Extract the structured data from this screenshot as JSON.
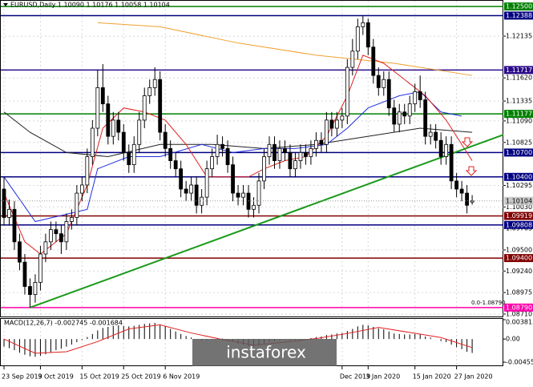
{
  "chart_data": {
    "type": "candlestick",
    "title": "EURUSD,Daily  1.10090 1.10176 1.10058 1.10104",
    "categories": [
      "23 Sep 2019",
      null,
      null,
      null,
      null,
      null,
      null,
      "3 Oct 2019",
      null,
      null,
      null,
      null,
      null,
      null,
      null,
      "15 Oct 2019",
      null,
      null,
      null,
      null,
      null,
      null,
      null,
      "25 Oct 2019",
      null,
      null,
      null,
      null,
      null,
      null,
      null,
      "6 Nov 2019",
      null,
      null,
      null,
      null,
      null,
      null,
      null,
      null,
      null,
      null,
      null,
      null,
      null,
      null,
      null,
      null,
      null,
      null,
      null,
      null,
      null,
      null,
      null,
      null,
      null,
      null,
      null,
      null,
      null,
      null,
      null,
      null,
      null,
      "Dec 2019",
      null,
      null,
      null,
      null,
      "3 Jan 2020",
      null,
      null,
      null,
      null,
      null,
      null,
      null,
      null,
      "15 Jan 2020",
      null,
      null,
      null,
      null,
      null,
      null,
      null,
      "27 Jan 2020",
      null,
      null,
      null
    ],
    "open": [
      1.1025,
      1.099,
      1.1,
      1.096,
      1.0935,
      1.0905,
      1.0895,
      1.091,
      1.0945,
      1.096,
      1.0975,
      1.097,
      1.096,
      1.0985,
      1.099,
      1.102,
      1.103,
      1.1065,
      1.11,
      1.115,
      1.113,
      1.109,
      1.111,
      1.1095,
      1.107,
      1.1055,
      1.108,
      1.111,
      1.114,
      1.115,
      1.116,
      1.1095,
      1.1075,
      1.106,
      1.105,
      1.1025,
      1.102,
      1.103,
      1.1005,
      1.1015,
      1.105,
      1.1065,
      1.108,
      1.1075,
      1.1055,
      1.102,
      1.1015,
      1.102,
      1.1,
      1.1005,
      1.1035,
      1.1065,
      1.108,
      1.106,
      1.1075,
      1.107,
      1.105,
      1.106,
      1.107,
      1.1065,
      1.1075,
      1.1085,
      1.108,
      1.111,
      1.11,
      1.111,
      1.1115,
      1.1175,
      1.1195,
      1.1225,
      1.123,
      1.12,
      1.1165,
      1.115,
      1.116,
      1.1125,
      1.1105,
      1.112,
      1.1115,
      1.113,
      1.1145,
      1.1135,
      1.109,
      1.1095,
      1.1085,
      1.1065,
      1.108,
      1.1035,
      1.1025,
      1.102,
      1.1009
    ],
    "high": [
      1.104,
      1.1012,
      1.101,
      1.097,
      1.0945,
      1.0915,
      1.092,
      1.0955,
      1.097,
      1.0985,
      1.0985,
      1.098,
      1.0995,
      1.1,
      1.103,
      1.104,
      1.1075,
      1.111,
      1.1172,
      1.1179,
      1.114,
      1.112,
      1.112,
      1.1105,
      1.108,
      1.109,
      1.112,
      1.115,
      1.116,
      1.1175,
      1.117,
      1.1105,
      1.1085,
      1.107,
      1.106,
      1.1035,
      1.104,
      1.104,
      1.1025,
      1.106,
      1.1075,
      1.1092,
      1.109,
      1.1085,
      1.1065,
      1.103,
      1.103,
      1.103,
      1.1015,
      1.1045,
      1.1075,
      1.109,
      1.109,
      1.1085,
      1.1085,
      1.108,
      1.107,
      1.108,
      1.108,
      1.1085,
      1.1095,
      1.1095,
      1.112,
      1.112,
      1.112,
      1.1125,
      1.1185,
      1.121,
      1.1235,
      1.1239,
      1.1235,
      1.121,
      1.1175,
      1.117,
      1.117,
      1.1135,
      1.113,
      1.113,
      1.114,
      1.1155,
      1.1165,
      1.1145,
      1.1105,
      1.1105,
      1.1095,
      1.109,
      1.109,
      1.1045,
      1.1035,
      1.103,
      1.10176
    ],
    "low": [
      1.098,
      1.098,
      1.095,
      1.0925,
      1.0895,
      1.0879,
      1.0885,
      1.09,
      1.0935,
      1.095,
      1.096,
      1.0945,
      1.095,
      1.0975,
      1.098,
      1.101,
      1.102,
      1.1055,
      1.109,
      1.112,
      1.108,
      1.108,
      1.1085,
      1.106,
      1.1045,
      1.1045,
      1.107,
      1.11,
      1.113,
      1.114,
      1.1085,
      1.1065,
      1.105,
      1.104,
      1.1015,
      1.101,
      1.101,
      1.0995,
      1.0995,
      1.1005,
      1.104,
      1.1055,
      1.1065,
      1.1045,
      1.101,
      1.1005,
      1.1005,
      1.099,
      1.099,
      1.0995,
      1.1025,
      1.1055,
      1.105,
      1.105,
      1.106,
      1.104,
      1.104,
      1.105,
      1.1055,
      1.1055,
      1.1065,
      1.107,
      1.107,
      1.109,
      1.109,
      1.11,
      1.1105,
      1.1165,
      1.1185,
      1.1215,
      1.119,
      1.1155,
      1.114,
      1.114,
      1.1115,
      1.1095,
      1.1095,
      1.1105,
      1.1105,
      1.112,
      1.1125,
      1.108,
      1.108,
      1.1075,
      1.1055,
      1.1055,
      1.1025,
      1.1015,
      1.101,
      1.0995,
      1.10058
    ],
    "close": [
      1.099,
      1.1,
      1.096,
      1.0935,
      1.0905,
      1.0895,
      1.091,
      1.0945,
      1.096,
      1.0975,
      1.097,
      1.096,
      1.0985,
      1.099,
      1.102,
      1.103,
      1.1065,
      1.11,
      1.115,
      1.113,
      1.109,
      1.111,
      1.1095,
      1.107,
      1.1055,
      1.108,
      1.111,
      1.114,
      1.115,
      1.116,
      1.1095,
      1.1075,
      1.106,
      1.105,
      1.1025,
      1.102,
      1.103,
      1.1005,
      1.1015,
      1.105,
      1.1065,
      1.108,
      1.1075,
      1.1055,
      1.102,
      1.1015,
      1.102,
      1.1,
      1.1005,
      1.1035,
      1.1065,
      1.108,
      1.106,
      1.1075,
      1.107,
      1.105,
      1.106,
      1.107,
      1.1065,
      1.1075,
      1.1085,
      1.108,
      1.111,
      1.11,
      1.111,
      1.1115,
      1.1175,
      1.1195,
      1.1225,
      1.123,
      1.12,
      1.1165,
      1.115,
      1.116,
      1.1125,
      1.1105,
      1.112,
      1.1115,
      1.113,
      1.1145,
      1.1135,
      1.109,
      1.1095,
      1.1085,
      1.1065,
      1.108,
      1.1035,
      1.1025,
      1.102,
      1.1005,
      1.10104
    ],
    "ylim": [
      1.0868,
      1.1258
    ],
    "yticks": [
      1.12135,
      {
        "value": 1.1162,
        "label": "1.11620"
      },
      1.11335,
      {
        "value": 1.1109,
        "label": "1.11090"
      },
      1.10825,
      1.10295,
      {
        "value": 1.1003,
        "label": "1.10030"
      },
      1.09765,
      {
        "value": 1.095,
        "label": "1.09500"
      },
      {
        "value": 1.0924,
        "label": "1.09240"
      },
      1.08975,
      {
        "value": 1.0871,
        "label": "1.08710"
      }
    ],
    "grid": true,
    "levels": [
      {
        "value": 1.125,
        "label": "1.12500",
        "color": "#008000"
      },
      {
        "value": 1.12388,
        "label": "1.12388",
        "color": "#000080"
      },
      {
        "value": 1.11717,
        "label": "1.11717",
        "color": "#2b0a8a"
      },
      {
        "value": 1.11177,
        "label": "1.11177",
        "color": "#008000"
      },
      {
        "value": 1.107,
        "label": "1.10700",
        "color": "#000080"
      },
      {
        "value": 1.104,
        "label": "1.10400",
        "color": "#000080"
      },
      {
        "value": 1.09919,
        "label": "1.09919",
        "color": "#800000"
      },
      {
        "value": 1.09808,
        "label": "1.09808",
        "color": "#000080"
      },
      {
        "value": 1.094,
        "label": "1.09400",
        "color": "#800000"
      },
      {
        "value": 1.0879,
        "label": "1.08790",
        "color": "#ff00aa"
      }
    ],
    "last_price": {
      "value": 1.10104,
      "label": "1.10104"
    },
    "overlays": [
      {
        "color": "#f0a030",
        "x": [
          18,
          30,
          45,
          60,
          75,
          90
        ],
        "values": [
          1.123,
          1.1225,
          1.1205,
          1.119,
          1.118,
          1.1165
        ]
      },
      {
        "color": "#202020",
        "x": [
          0,
          5,
          12,
          20,
          30,
          40,
          50,
          60,
          70,
          80,
          90
        ],
        "values": [
          1.112,
          1.1095,
          1.107,
          1.1065,
          1.108,
          1.108,
          1.1075,
          1.108,
          1.109,
          1.11,
          1.1095
        ]
      },
      {
        "color": "#2030e0",
        "x": [
          0,
          6,
          16,
          18,
          24,
          30,
          38,
          44,
          50,
          56,
          62,
          66,
          70,
          76,
          80,
          84,
          88
        ],
        "values": [
          1.104,
          1.0985,
          1.1,
          1.105,
          1.1065,
          1.1065,
          1.108,
          1.107,
          1.1075,
          1.1075,
          1.108,
          1.11,
          1.1125,
          1.114,
          1.1145,
          1.112,
          1.1115
        ]
      },
      {
        "color": "#e02020",
        "x": [
          0,
          4,
          7,
          12,
          16,
          19,
          23,
          27,
          31,
          35,
          39,
          43,
          47,
          50,
          54,
          58,
          62,
          66,
          69,
          73,
          77,
          81,
          85,
          90
        ],
        "values": [
          1.102,
          1.096,
          1.0945,
          1.097,
          1.103,
          1.11,
          1.1125,
          1.112,
          1.111,
          1.108,
          1.104,
          1.104,
          1.104,
          1.105,
          1.106,
          1.1065,
          1.109,
          1.114,
          1.119,
          1.118,
          1.116,
          1.114,
          1.111,
          1.106
        ]
      },
      {
        "color": "#1a9a1a",
        "x": [
          5,
          96
        ],
        "values": [
          1.0879,
          1.1092
        ]
      }
    ],
    "annotation": "0.0-1.08790",
    "watermark": "instaforex",
    "indicator": {
      "title": "MACD(12,26,7) -0.002745 -0.001684",
      "values": [
        -0.0015,
        -0.0018,
        -0.0022,
        -0.0027,
        -0.0031,
        -0.0034,
        -0.0035,
        -0.0033,
        -0.003,
        -0.0026,
        -0.0022,
        -0.0019,
        -0.0015,
        -0.0011,
        -0.0006,
        -0.0002,
        0.0004,
        0.001,
        0.0017,
        0.0022,
        0.0024,
        0.0026,
        0.0027,
        0.0026,
        0.0025,
        0.0026,
        0.0028,
        0.003,
        0.0031,
        0.0032,
        0.0029,
        0.0025,
        0.002,
        0.0015,
        0.001,
        0.0006,
        0.0003,
        -0.0001,
        -0.0003,
        -0.0002,
        -0.0001,
        0.0001,
        0.0001,
        -0.0001,
        -0.0005,
        -0.0009,
        -0.0011,
        -0.0014,
        -0.0015,
        -0.0013,
        -0.0009,
        -0.0005,
        -0.0004,
        -0.0002,
        -0.0001,
        -0.0002,
        -0.0002,
        -0.0001,
        0.0,
        0.0002,
        0.0004,
        0.0005,
        0.0008,
        0.0009,
        0.0011,
        0.0012,
        0.0016,
        0.002,
        0.0025,
        0.0028,
        0.0027,
        0.0024,
        0.0021,
        0.0019,
        0.0015,
        0.0011,
        0.001,
        0.0009,
        0.0009,
        0.001,
        0.0009,
        0.0005,
        0.0003,
        0.0,
        -0.0004,
        -0.0006,
        -0.0011,
        -0.0016,
        -0.002,
        -0.0025,
        -0.002745
      ],
      "signal": {
        "color": "#e02020",
        "x": [
          0,
          6,
          12,
          18,
          24,
          30,
          36,
          42,
          48,
          54,
          60,
          66,
          72,
          78,
          84,
          90
        ],
        "values": [
          0.0,
          -0.0028,
          -0.0025,
          -0.0005,
          0.002,
          0.0028,
          0.0012,
          -0.0001,
          -0.0012,
          -0.0006,
          0.0001,
          0.0011,
          0.0023,
          0.0013,
          0.0003,
          -0.001684
        ]
      },
      "ylim": [
        -0.004556,
        0.003815
      ],
      "yticks": [
        0.003815,
        {
          "value": 0,
          "label": "0.00"
        },
        -0.004556
      ]
    }
  }
}
